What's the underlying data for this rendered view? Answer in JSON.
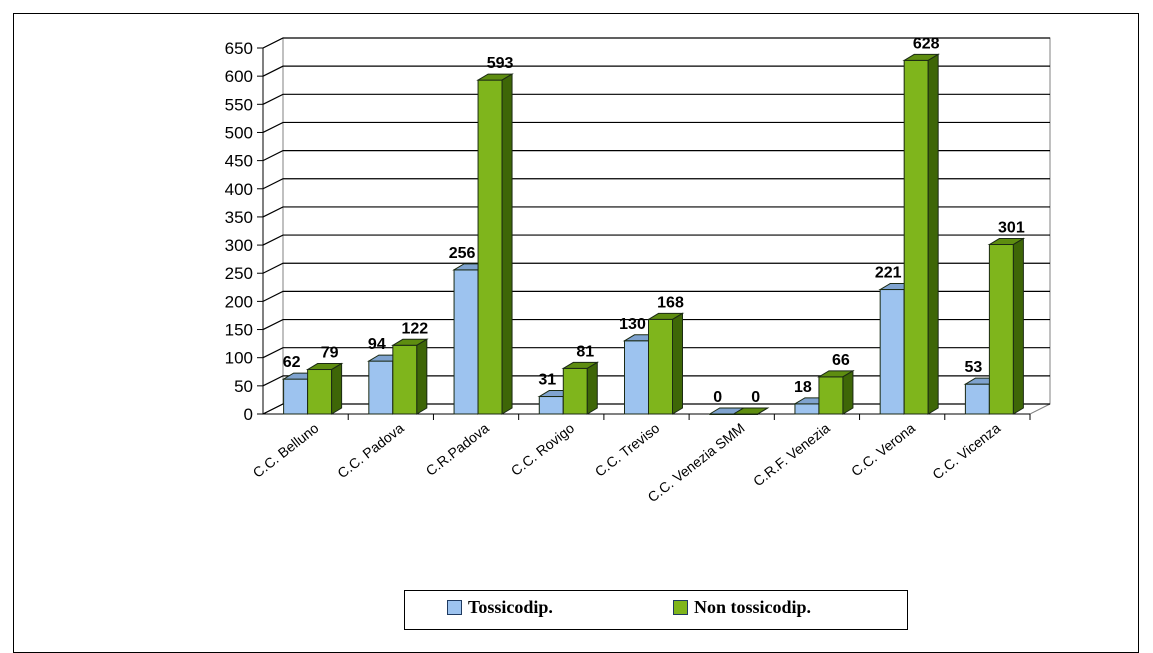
{
  "chart_data": {
    "type": "bar",
    "categories": [
      "C.C. Belluno",
      "C.C. Padova",
      "C.R.Padova",
      "C.C. Rovigo",
      "C.C. Treviso",
      "C.C. Venezia SMM",
      "C.R.F. Venezia",
      "C.C. Verona",
      "C.C. Vicenza"
    ],
    "series": [
      {
        "name": "Tossicodip.",
        "values": [
          62,
          94,
          256,
          31,
          130,
          0,
          18,
          221,
          53
        ],
        "color": "#9dc3ef",
        "side_color": "#5c7fa8",
        "top_color": "#7fa3cf"
      },
      {
        "name": "Non tossicodip.",
        "values": [
          79,
          122,
          593,
          81,
          168,
          0,
          66,
          628,
          301
        ],
        "color": "#7fb51c",
        "side_color": "#3e6607",
        "top_color": "#5e8d10"
      }
    ],
    "yticks": [
      0,
      50,
      100,
      150,
      200,
      250,
      300,
      350,
      400,
      450,
      500,
      550,
      600,
      650
    ],
    "ylim": [
      0,
      650
    ],
    "grid": true,
    "legend_position": "bottom",
    "title": "",
    "xlabel": "",
    "ylabel": ""
  }
}
